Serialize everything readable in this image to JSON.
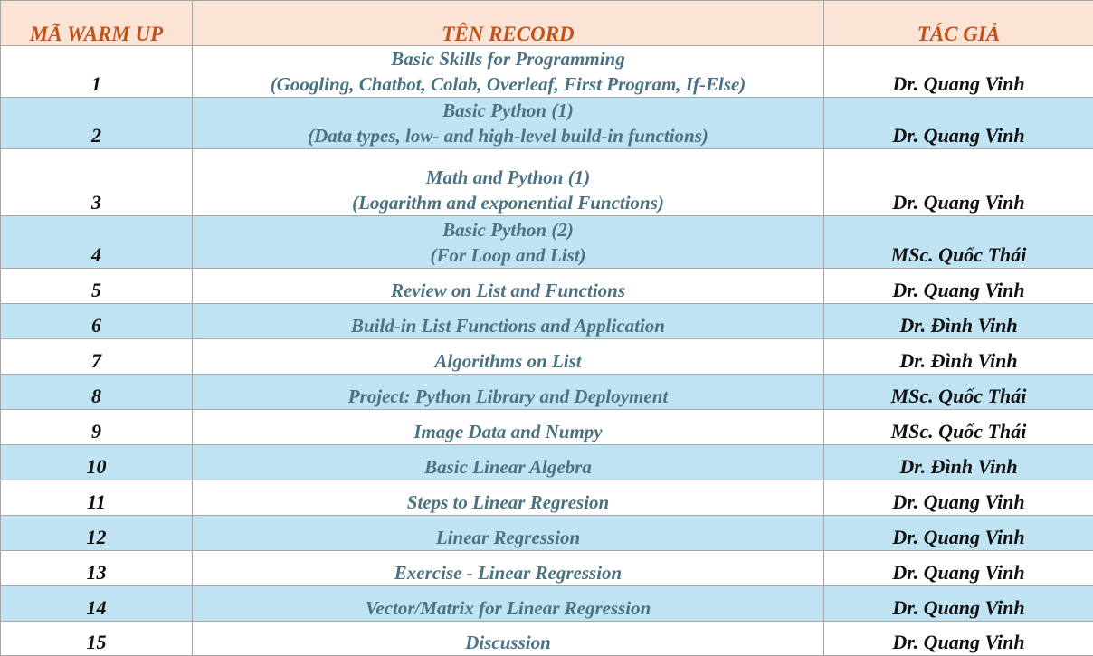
{
  "header": {
    "col_code": "MÃ WARM UP",
    "col_title": "TÊN RECORD",
    "col_author": "TÁC GIẢ"
  },
  "rows": [
    {
      "num": "1",
      "title_line1": "Basic Skills for Programming",
      "title_line2": "(Googling, Chatbot, Colab, Overleaf, First Program, If-Else)",
      "author": "Dr. Quang Vinh"
    },
    {
      "num": "2",
      "title_line1": "Basic Python (1)",
      "title_line2": "(Data types, low- and high-level build-in functions)",
      "author": "Dr. Quang Vinh"
    },
    {
      "num": "3",
      "title_line1": "Math and Python (1)",
      "title_line2": "(Logarithm and exponential Functions)",
      "author": "Dr. Quang Vinh"
    },
    {
      "num": "4",
      "title_line1": "Basic Python (2)",
      "title_line2": "(For Loop and List)",
      "author": "MSc. Quốc Thái"
    },
    {
      "num": "5",
      "title_line1": "Review on List and Functions",
      "author": "Dr. Quang Vinh"
    },
    {
      "num": "6",
      "title_line1": "Build-in List Functions and Application",
      "author": "Dr. Đình Vinh"
    },
    {
      "num": "7",
      "title_line1": "Algorithms on List",
      "author": "Dr. Đình Vinh"
    },
    {
      "num": "8",
      "title_line1": "Project: Python Library and Deployment",
      "author": "MSc. Quốc Thái"
    },
    {
      "num": "9",
      "title_line1": "Image Data and Numpy",
      "author": "MSc. Quốc Thái"
    },
    {
      "num": "10",
      "title_line1": "Basic Linear Algebra",
      "author": "Dr. Đình Vinh"
    },
    {
      "num": "11",
      "title_line1": "Steps to Linear Regresion",
      "author": "Dr. Quang Vinh"
    },
    {
      "num": "12",
      "title_line1": "Linear Regression",
      "author": "Dr. Quang Vinh"
    },
    {
      "num": "13",
      "title_line1": "Exercise - Linear Regression",
      "author": "Dr. Quang Vinh"
    },
    {
      "num": "14",
      "title_line1": "Vector/Matrix for Linear Regression",
      "author": "Dr. Quang Vinh"
    },
    {
      "num": "15",
      "title_line1": "Discussion",
      "author": "Dr. Quang Vinh"
    }
  ]
}
